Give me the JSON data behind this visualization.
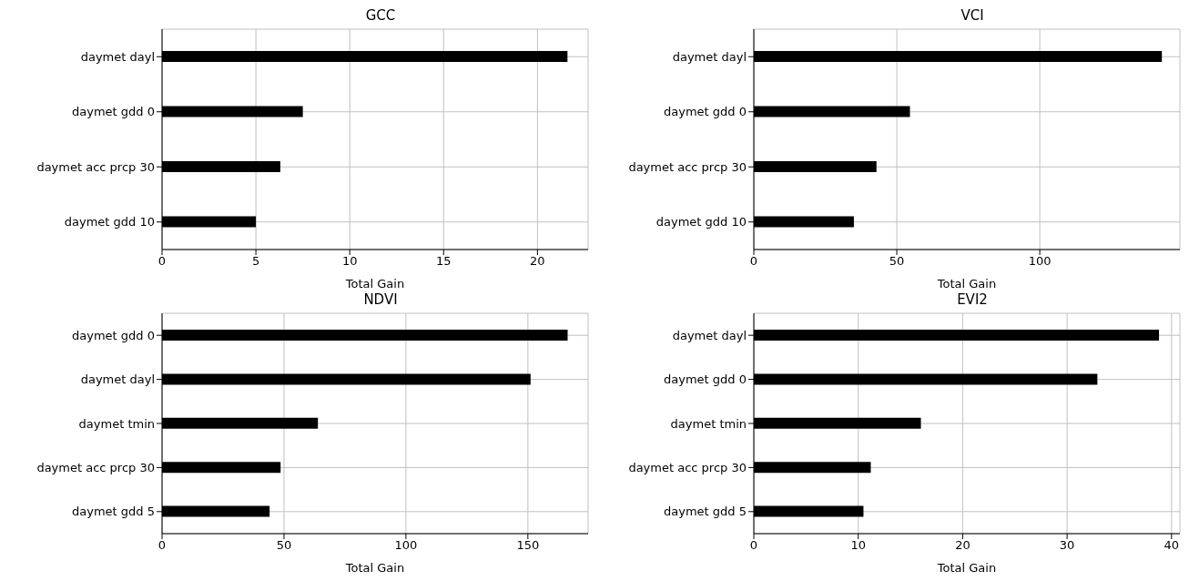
{
  "chart_data": [
    {
      "type": "bar",
      "orientation": "horizontal",
      "title": "GCC",
      "xlabel": "Total Gain",
      "categories": [
        "daymet dayl",
        "daymet gdd 0",
        "daymet acc prcp 30",
        "daymet gdd 10"
      ],
      "values": [
        21.6,
        7.5,
        6.3,
        5.0
      ],
      "color": "#000000",
      "xlim": [
        0,
        22.7
      ],
      "xticks": [
        0,
        5,
        10,
        15,
        20
      ],
      "grid": true
    },
    {
      "type": "bar",
      "orientation": "horizontal",
      "title": "VCI",
      "xlabel": "Total Gain",
      "categories": [
        "daymet dayl",
        "daymet gdd 0",
        "daymet acc prcp 30",
        "daymet gdd 10"
      ],
      "values": [
        142.7,
        54.6,
        42.9,
        35.0
      ],
      "color": "#000000",
      "xlim": [
        0,
        149
      ],
      "xticks": [
        0,
        50,
        100
      ],
      "grid": true
    },
    {
      "type": "bar",
      "orientation": "horizontal",
      "title": "NDVI",
      "xlabel": "Total Gain",
      "categories": [
        "daymet gdd 0",
        "daymet dayl",
        "daymet tmin",
        "daymet acc prcp 30",
        "daymet gdd 5"
      ],
      "values": [
        166.3,
        151.1,
        63.9,
        48.6,
        44.1
      ],
      "color": "#000000",
      "xlim": [
        0,
        174.7
      ],
      "xticks": [
        0,
        50,
        100,
        150
      ],
      "grid": true
    },
    {
      "type": "bar",
      "orientation": "horizontal",
      "title": "EVI2",
      "xlabel": "Total Gain",
      "categories": [
        "daymet dayl",
        "daymet gdd 0",
        "daymet tmin",
        "daymet acc prcp 30",
        "daymet gdd 5"
      ],
      "values": [
        38.8,
        32.9,
        16.0,
        11.2,
        10.5
      ],
      "color": "#000000",
      "xlim": [
        0,
        40.8
      ],
      "xticks": [
        0,
        10,
        20,
        30,
        40
      ],
      "grid": true
    }
  ]
}
